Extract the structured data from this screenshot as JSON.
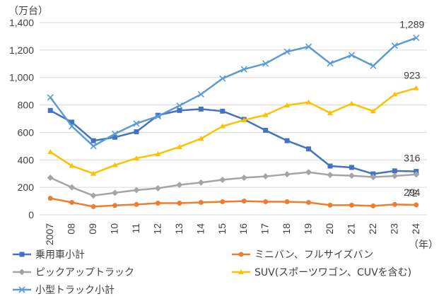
{
  "chart_data": {
    "type": "line",
    "y_unit_label": "（万台）",
    "x_unit_label": "（年）",
    "categories": [
      "2007",
      "08",
      "09",
      "10",
      "11",
      "12",
      "13",
      "14",
      "15",
      "16",
      "17",
      "18",
      "19",
      "20",
      "21",
      "22",
      "23",
      "24"
    ],
    "y_ticks": [
      "0",
      "200",
      "400",
      "600",
      "800",
      "1,000",
      "1,200",
      "1,400"
    ],
    "ylim": [
      0,
      1400
    ],
    "grid": true,
    "legend_position": "bottom",
    "series": [
      {
        "name": "乗用車小計",
        "color": "#4472C4",
        "marker": "square",
        "values": [
          760,
          675,
          540,
          565,
          605,
          725,
          760,
          770,
          755,
          695,
          615,
          540,
          480,
          355,
          345,
          298,
          320,
          316
        ],
        "end_label": "316"
      },
      {
        "name": "ミニバン、フルサイズバン",
        "color": "#ED7D31",
        "marker": "circle",
        "values": [
          120,
          90,
          60,
          68,
          75,
          85,
          85,
          90,
          95,
          100,
          95,
          95,
          90,
          70,
          70,
          65,
          75,
          72
        ],
        "end_label": "72"
      },
      {
        "name": "ピックアップトラック",
        "color": "#A5A5A5",
        "marker": "diamond",
        "values": [
          270,
          200,
          140,
          160,
          180,
          193,
          218,
          235,
          255,
          270,
          280,
          295,
          310,
          290,
          285,
          275,
          283,
          294
        ],
        "end_label": "294"
      },
      {
        "name": "SUV(スポーツワゴン、CUVを含む)",
        "color": "#FFC000",
        "marker": "triangle",
        "values": [
          458,
          357,
          300,
          362,
          412,
          443,
          495,
          555,
          645,
          690,
          727,
          798,
          820,
          742,
          810,
          755,
          878,
          923
        ],
        "end_label": "923"
      },
      {
        "name": "小型トラック小計",
        "color": "#5B9BD5",
        "marker": "x",
        "values": [
          855,
          645,
          500,
          590,
          665,
          718,
          795,
          878,
          993,
          1060,
          1102,
          1188,
          1225,
          1103,
          1163,
          1085,
          1232,
          1289
        ],
        "end_label": "1,289"
      }
    ]
  }
}
